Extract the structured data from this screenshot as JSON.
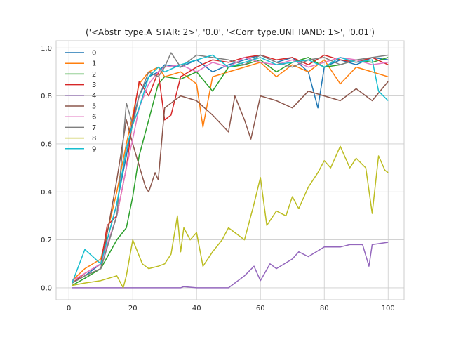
{
  "chart_data": {
    "type": "line",
    "title": "('<Abstr_type.A_STAR: 2>', '0.0', '<Corr_type.UNI_RAND: 1>', '0.01')",
    "xlabel": "",
    "ylabel": "",
    "xlim": [
      -4,
      105
    ],
    "ylim": [
      -0.05,
      1.03
    ],
    "xticks": [
      0,
      20,
      40,
      60,
      80,
      100
    ],
    "xtick_labels": [
      "0",
      "20",
      "40",
      "60",
      "80",
      "100"
    ],
    "yticks": [
      0.0,
      0.2,
      0.4,
      0.6,
      0.8,
      1.0
    ],
    "ytick_labels": [
      "0.0",
      "0.2",
      "0.4",
      "0.6",
      "0.8",
      "1.0"
    ],
    "grid": true,
    "legend_position": "top-left",
    "series": [
      {
        "name": "0",
        "color": "#1f77b4",
        "x": [
          1,
          5,
          10,
          15,
          18,
          20,
          22,
          25,
          28,
          30,
          35,
          40,
          45,
          50,
          55,
          60,
          65,
          70,
          75,
          78,
          80,
          85,
          90,
          95,
          100
        ],
        "values": [
          0.02,
          0.05,
          0.1,
          0.35,
          0.55,
          0.7,
          0.8,
          0.88,
          0.9,
          0.93,
          0.92,
          0.95,
          0.9,
          0.93,
          0.95,
          0.97,
          0.94,
          0.96,
          0.9,
          0.75,
          0.92,
          0.95,
          0.93,
          0.96,
          0.95
        ]
      },
      {
        "name": "1",
        "color": "#ff7f0e",
        "x": [
          1,
          5,
          10,
          15,
          18,
          20,
          22,
          25,
          28,
          30,
          35,
          40,
          42,
          45,
          50,
          55,
          60,
          65,
          70,
          75,
          80,
          85,
          90,
          95,
          100
        ],
        "values": [
          0.03,
          0.08,
          0.12,
          0.4,
          0.6,
          0.72,
          0.85,
          0.9,
          0.92,
          0.88,
          0.9,
          0.85,
          0.67,
          0.88,
          0.9,
          0.92,
          0.94,
          0.88,
          0.93,
          0.9,
          0.95,
          0.85,
          0.92,
          0.9,
          0.88
        ]
      },
      {
        "name": "2",
        "color": "#2ca02c",
        "x": [
          1,
          5,
          10,
          15,
          18,
          20,
          22,
          25,
          28,
          30,
          35,
          40,
          45,
          50,
          55,
          60,
          65,
          70,
          75,
          80,
          85,
          90,
          95,
          100
        ],
        "values": [
          0.01,
          0.04,
          0.08,
          0.2,
          0.25,
          0.38,
          0.55,
          0.7,
          0.85,
          0.88,
          0.87,
          0.9,
          0.82,
          0.92,
          0.93,
          0.95,
          0.9,
          0.94,
          0.96,
          0.92,
          0.93,
          0.95,
          0.94,
          0.96
        ]
      },
      {
        "name": "3",
        "color": "#d62728",
        "x": [
          1,
          5,
          10,
          12,
          15,
          18,
          20,
          22,
          25,
          28,
          30,
          32,
          35,
          40,
          45,
          50,
          55,
          60,
          65,
          70,
          75,
          80,
          85,
          90,
          95,
          100
        ],
        "values": [
          0.02,
          0.06,
          0.1,
          0.26,
          0.3,
          0.5,
          0.7,
          0.86,
          0.8,
          0.9,
          0.7,
          0.72,
          0.88,
          0.92,
          0.95,
          0.94,
          0.96,
          0.97,
          0.95,
          0.96,
          0.93,
          0.97,
          0.95,
          0.94,
          0.96,
          0.93
        ]
      },
      {
        "name": "4",
        "color": "#9467bd",
        "x": [
          1,
          5,
          10,
          15,
          20,
          25,
          30,
          35,
          36,
          40,
          45,
          50,
          52,
          55,
          58,
          60,
          63,
          65,
          70,
          72,
          75,
          80,
          85,
          88,
          90,
          92,
          94,
          95,
          100
        ],
        "values": [
          0.0,
          0.0,
          0.0,
          0.0,
          0.0,
          0.0,
          0.0,
          0.0,
          0.005,
          0.0,
          0.0,
          0.0,
          0.02,
          0.05,
          0.09,
          0.03,
          0.1,
          0.08,
          0.12,
          0.15,
          0.13,
          0.17,
          0.17,
          0.18,
          0.18,
          0.18,
          0.09,
          0.18,
          0.19
        ]
      },
      {
        "name": "5",
        "color": "#8c564b",
        "x": [
          1,
          5,
          10,
          15,
          18,
          20,
          24,
          25,
          27,
          28,
          30,
          35,
          40,
          45,
          50,
          52,
          55,
          57,
          60,
          65,
          70,
          75,
          80,
          85,
          90,
          95,
          100
        ],
        "values": [
          0.02,
          0.05,
          0.08,
          0.45,
          0.7,
          0.6,
          0.42,
          0.4,
          0.48,
          0.45,
          0.75,
          0.8,
          0.78,
          0.72,
          0.65,
          0.8,
          0.7,
          0.62,
          0.8,
          0.78,
          0.75,
          0.82,
          0.8,
          0.78,
          0.83,
          0.78,
          0.86
        ]
      },
      {
        "name": "6",
        "color": "#e377c2",
        "x": [
          1,
          5,
          10,
          15,
          18,
          20,
          22,
          25,
          28,
          30,
          35,
          40,
          45,
          50,
          55,
          60,
          65,
          70,
          75,
          80,
          85,
          90,
          95,
          100
        ],
        "values": [
          0.03,
          0.06,
          0.1,
          0.3,
          0.5,
          0.62,
          0.75,
          0.85,
          0.9,
          0.92,
          0.93,
          0.9,
          0.94,
          0.92,
          0.96,
          0.94,
          0.93,
          0.95,
          0.92,
          0.94,
          0.96,
          0.95,
          0.93,
          0.94
        ]
      },
      {
        "name": "7",
        "color": "#7f7f7f",
        "x": [
          1,
          5,
          10,
          15,
          18,
          20,
          22,
          25,
          28,
          30,
          32,
          35,
          38,
          40,
          45,
          50,
          55,
          60,
          65,
          70,
          75,
          80,
          85,
          90,
          95,
          100
        ],
        "values": [
          0.02,
          0.05,
          0.08,
          0.3,
          0.77,
          0.68,
          0.8,
          0.9,
          0.88,
          0.92,
          0.98,
          0.92,
          0.95,
          0.97,
          0.96,
          0.95,
          0.93,
          0.97,
          0.94,
          0.92,
          0.95,
          0.96,
          0.93,
          0.95,
          0.96,
          0.97
        ]
      },
      {
        "name": "8",
        "color": "#bcbd22",
        "x": [
          1,
          5,
          10,
          15,
          17,
          18,
          20,
          23,
          25,
          28,
          30,
          32,
          34,
          35,
          36,
          38,
          40,
          42,
          45,
          48,
          50,
          55,
          58,
          60,
          62,
          65,
          68,
          70,
          72,
          75,
          78,
          80,
          82,
          85,
          88,
          90,
          93,
          95,
          97,
          99,
          100
        ],
        "values": [
          0.01,
          0.02,
          0.03,
          0.05,
          0.0,
          0.05,
          0.2,
          0.1,
          0.08,
          0.09,
          0.1,
          0.14,
          0.3,
          0.15,
          0.25,
          0.2,
          0.23,
          0.09,
          0.15,
          0.2,
          0.25,
          0.2,
          0.35,
          0.46,
          0.26,
          0.32,
          0.3,
          0.38,
          0.33,
          0.42,
          0.48,
          0.53,
          0.5,
          0.59,
          0.5,
          0.54,
          0.5,
          0.31,
          0.55,
          0.49,
          0.48
        ]
      },
      {
        "name": "9",
        "color": "#17becf",
        "x": [
          1,
          5,
          10,
          15,
          18,
          20,
          22,
          25,
          28,
          30,
          35,
          40,
          45,
          50,
          55,
          60,
          65,
          70,
          75,
          80,
          85,
          90,
          95,
          97,
          100
        ],
        "values": [
          0.02,
          0.16,
          0.1,
          0.35,
          0.58,
          0.68,
          0.75,
          0.88,
          0.92,
          0.9,
          0.93,
          0.95,
          0.97,
          0.92,
          0.94,
          0.96,
          0.93,
          0.94,
          0.95,
          0.92,
          0.96,
          0.94,
          0.95,
          0.82,
          0.78
        ]
      }
    ]
  }
}
